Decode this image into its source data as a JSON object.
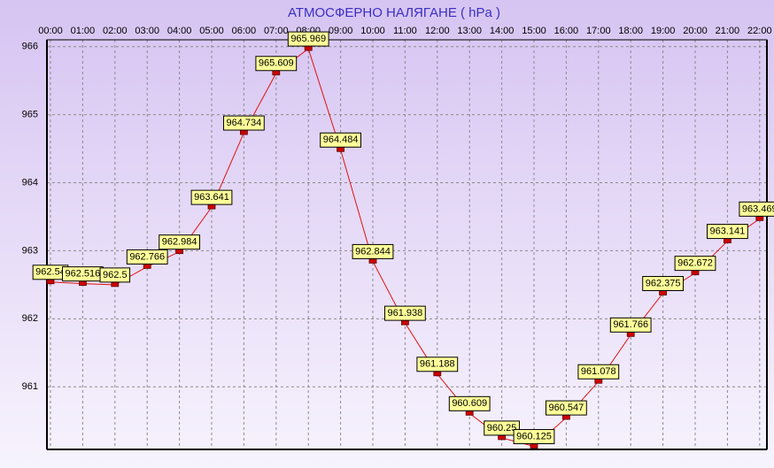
{
  "chart_data": {
    "type": "line",
    "title": "АТМОСФЕРНО НАЛЯГАНЕ  ( hPa )",
    "categories": [
      "00:00",
      "01:00",
      "02:00",
      "03:00",
      "04:00",
      "05:00",
      "06:00",
      "07:00",
      "08:00",
      "09:00",
      "10:00",
      "11:00",
      "12:00",
      "13:00",
      "14:00",
      "15:00",
      "16:00",
      "17:00",
      "18:00",
      "19:00",
      "20:00",
      "21:00",
      "22:00"
    ],
    "series": [
      {
        "color": "#e01010",
        "values": [
          962.54,
          962.516,
          962.5,
          962.766,
          962.984,
          963.641,
          964.734,
          965.609,
          965.969,
          964.484,
          962.844,
          961.938,
          961.188,
          960.609,
          960.25,
          960.125,
          960.547,
          961.078,
          961.766,
          962.375,
          962.672,
          963.141,
          963.469
        ]
      }
    ],
    "ylim": [
      960.08,
      966.1
    ],
    "yticks": [
      961,
      962,
      963,
      964,
      965,
      966
    ],
    "grid": true
  }
}
